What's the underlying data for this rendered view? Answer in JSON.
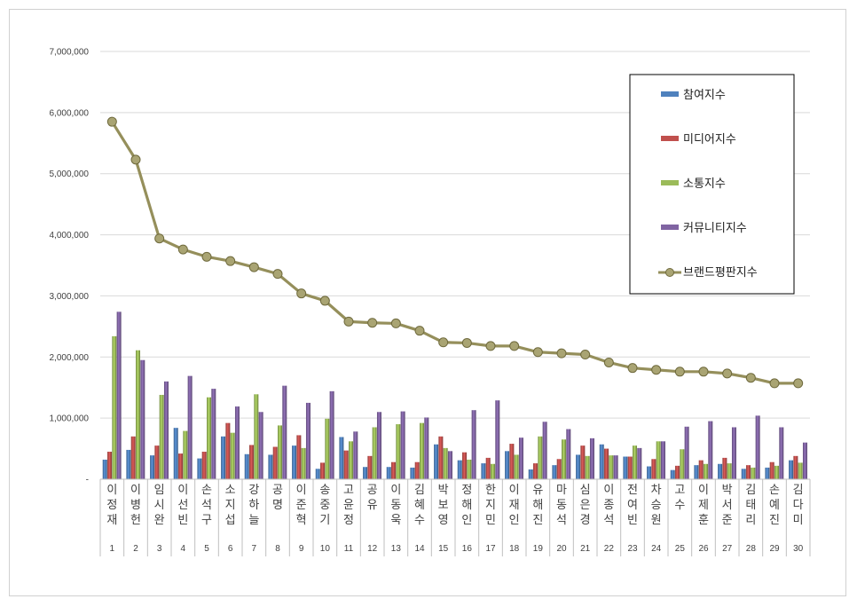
{
  "chart_data": {
    "type": "bar",
    "ylim": [
      0,
      7000000
    ],
    "yticks": [
      "-",
      "1,000,000",
      "2,000,000",
      "3,000,000",
      "4,000,000",
      "5,000,000",
      "6,000,000",
      "7,000,000"
    ],
    "ytick_values": [
      0,
      1000000,
      2000000,
      3000000,
      4000000,
      5000000,
      6000000,
      7000000
    ],
    "grid": true,
    "legend_position": "top-right",
    "categories": [
      "1",
      "2",
      "3",
      "4",
      "5",
      "6",
      "7",
      "8",
      "9",
      "10",
      "11",
      "12",
      "13",
      "14",
      "15",
      "16",
      "17",
      "18",
      "19",
      "20",
      "21",
      "22",
      "23",
      "24",
      "25",
      "26",
      "27",
      "28",
      "29",
      "30"
    ],
    "names": [
      "이정재",
      "이병헌",
      "임시완",
      "이선빈",
      "손석구",
      "소지섭",
      "강하늘",
      "공명",
      "이준혁",
      "송중기",
      "고윤정",
      "공유",
      "이동욱",
      "김혜수",
      "박보영",
      "정해인",
      "한지민",
      "이재인",
      "유해진",
      "마동석",
      "심은경",
      "이종석",
      "전여빈",
      "차승원",
      "고수",
      "이제훈",
      "박서준",
      "김태리",
      "손예진",
      "김다미"
    ],
    "series": [
      {
        "name": "참여지수",
        "kind": "bar",
        "color": "#4f81bd",
        "values": [
          320000,
          480000,
          390000,
          840000,
          340000,
          700000,
          410000,
          400000,
          550000,
          170000,
          690000,
          200000,
          200000,
          190000,
          570000,
          310000,
          260000,
          460000,
          160000,
          230000,
          400000,
          570000,
          370000,
          210000,
          150000,
          230000,
          250000,
          170000,
          190000,
          310000
        ]
      },
      {
        "name": "미디어지수",
        "kind": "bar",
        "color": "#c0504d",
        "values": [
          450000,
          700000,
          550000,
          420000,
          450000,
          920000,
          560000,
          530000,
          720000,
          270000,
          470000,
          380000,
          280000,
          280000,
          700000,
          440000,
          350000,
          580000,
          260000,
          330000,
          550000,
          500000,
          370000,
          330000,
          220000,
          310000,
          350000,
          230000,
          280000,
          380000
        ]
      },
      {
        "name": "소통지수",
        "kind": "bar",
        "color": "#9bbb59",
        "values": [
          2340000,
          2110000,
          1380000,
          790000,
          1340000,
          760000,
          1390000,
          880000,
          510000,
          990000,
          620000,
          850000,
          900000,
          920000,
          510000,
          320000,
          250000,
          400000,
          700000,
          650000,
          380000,
          390000,
          550000,
          620000,
          490000,
          250000,
          260000,
          190000,
          220000,
          270000
        ]
      },
      {
        "name": "커뮤니티지수",
        "kind": "bar",
        "color": "#8064a2",
        "values": [
          2740000,
          1950000,
          1600000,
          1690000,
          1480000,
          1190000,
          1100000,
          1530000,
          1250000,
          1440000,
          780000,
          1100000,
          1110000,
          1010000,
          460000,
          1130000,
          1290000,
          680000,
          940000,
          820000,
          670000,
          390000,
          510000,
          620000,
          860000,
          950000,
          850000,
          1040000,
          850000,
          600000
        ]
      },
      {
        "name": "브랜드평판지수",
        "kind": "line",
        "color": "#958f5b",
        "values": [
          5850000,
          5230000,
          3940000,
          3760000,
          3640000,
          3570000,
          3470000,
          3360000,
          3040000,
          2920000,
          2580000,
          2560000,
          2550000,
          2430000,
          2240000,
          2230000,
          2180000,
          2180000,
          2080000,
          2060000,
          2040000,
          1910000,
          1820000,
          1790000,
          1760000,
          1760000,
          1730000,
          1660000,
          1570000,
          1570000
        ]
      }
    ]
  }
}
